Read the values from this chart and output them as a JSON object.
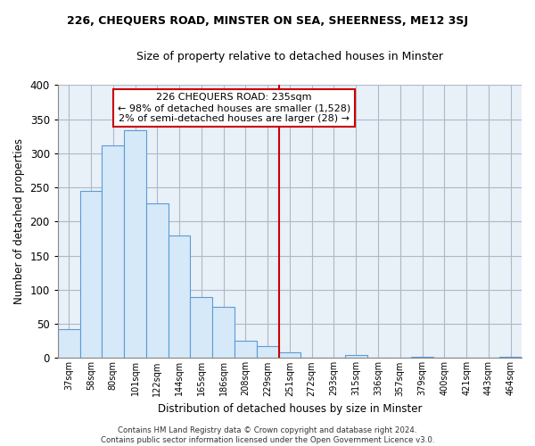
{
  "title_line1": "226, CHEQUERS ROAD, MINSTER ON SEA, SHEERNESS, ME12 3SJ",
  "title_line2": "Size of property relative to detached houses in Minster",
  "xlabel": "Distribution of detached houses by size in Minster",
  "ylabel": "Number of detached properties",
  "bar_labels": [
    "37sqm",
    "58sqm",
    "80sqm",
    "101sqm",
    "122sqm",
    "144sqm",
    "165sqm",
    "186sqm",
    "208sqm",
    "229sqm",
    "251sqm",
    "272sqm",
    "293sqm",
    "315sqm",
    "336sqm",
    "357sqm",
    "379sqm",
    "400sqm",
    "421sqm",
    "443sqm",
    "464sqm"
  ],
  "bar_heights": [
    42,
    245,
    312,
    334,
    227,
    179,
    90,
    75,
    25,
    18,
    9,
    0,
    0,
    5,
    0,
    0,
    2,
    0,
    0,
    0,
    2
  ],
  "bar_color": "#d6e9f8",
  "bar_edge_color": "#5b9bd5",
  "vline_x": 9.5,
  "vline_color": "#cc0000",
  "ylim": [
    0,
    400
  ],
  "yticks": [
    0,
    50,
    100,
    150,
    200,
    250,
    300,
    350,
    400
  ],
  "annotation_title": "226 CHEQUERS ROAD: 235sqm",
  "annotation_line1": "← 98% of detached houses are smaller (1,528)",
  "annotation_line2": "2% of semi-detached houses are larger (28) →",
  "annotation_box_color": "#ffffff",
  "annotation_box_edge": "#cc0000",
  "footer_line1": "Contains HM Land Registry data © Crown copyright and database right 2024.",
  "footer_line2": "Contains public sector information licensed under the Open Government Licence v3.0.",
  "background_color": "#ffffff",
  "plot_bg_color": "#e8f0f8",
  "grid_color": "#b0b8c8"
}
